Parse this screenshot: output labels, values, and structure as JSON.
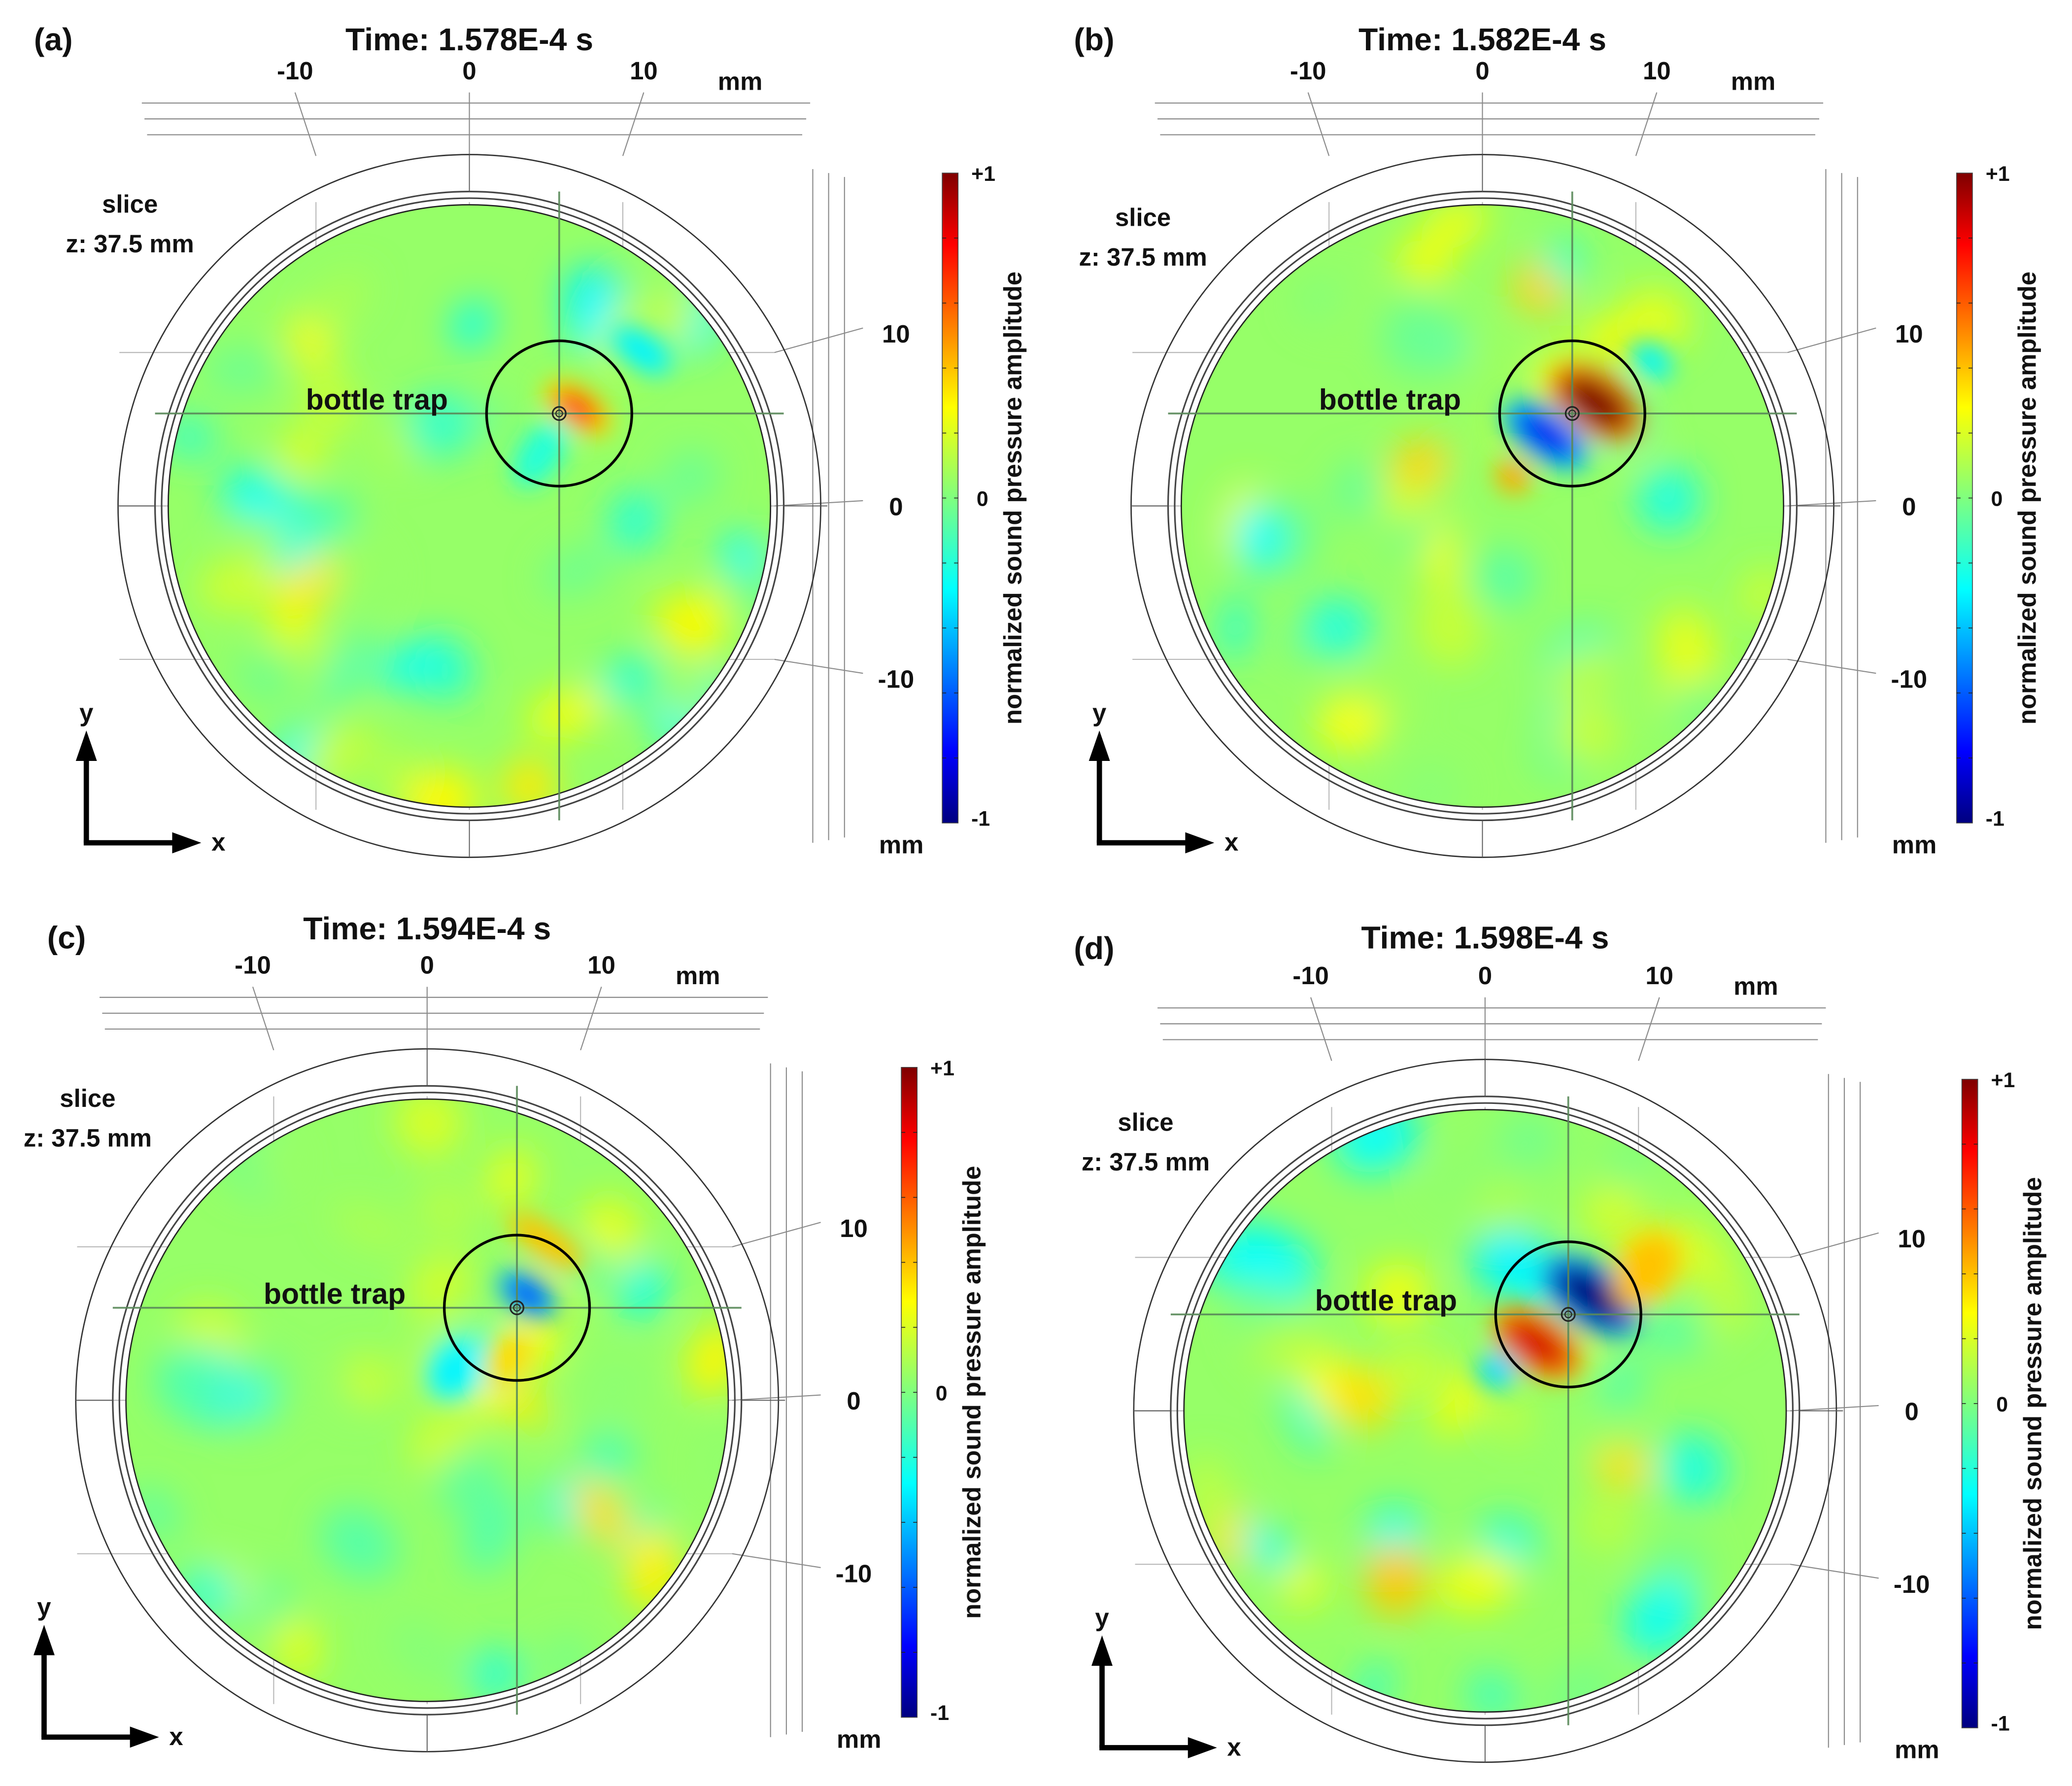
{
  "figure": {
    "unit_label": "mm",
    "slice_label": "slice",
    "slice_value": "z: 37.5 mm",
    "trap_label": "bottle trap",
    "axis_x_label": "x",
    "axis_y_label": "y",
    "colorbar": {
      "label": "normalized sound pressure amplitude",
      "max_label": "+1",
      "mid_label": "0",
      "min_label": "-1",
      "colormap": "jet",
      "stops": [
        "#00007f",
        "#0000ff",
        "#00ffff",
        "#7fff7f",
        "#ffff00",
        "#ff0000",
        "#7f0000"
      ]
    }
  },
  "panels": [
    {
      "label": "(a)",
      "title": "Time: 1.578E-4 s"
    },
    {
      "label": "(b)",
      "title": "Time: 1.582E-4 s"
    },
    {
      "label": "(c)",
      "title": "Time: 1.594E-4 s"
    },
    {
      "label": "(d)",
      "title": "Time: 1.598E-4 s"
    }
  ],
  "chart_data": [
    {
      "type": "heatmap",
      "title": "Time: 1.578E-4 s",
      "panel": "(a)",
      "xlabel": "x (mm)",
      "ylabel": "y (mm)",
      "x_ticks": [
        -10,
        0,
        10
      ],
      "y_ticks": [
        10,
        0,
        -10
      ],
      "xlim": [
        -17,
        17
      ],
      "ylim": [
        -17,
        17
      ],
      "colorbar_range": [
        -1,
        1
      ],
      "slice_z_mm": 37.5,
      "trap_center_mm": [
        5,
        5
      ],
      "trap_pattern": {
        "peak_value": 0.75,
        "trough_value": -0.3,
        "orientation": "positive lobe upper-right of trap center"
      },
      "background_range": [
        -0.3,
        0.35
      ]
    },
    {
      "type": "heatmap",
      "title": "Time: 1.582E-4 s",
      "panel": "(b)",
      "xlabel": "x (mm)",
      "ylabel": "y (mm)",
      "x_ticks": [
        -10,
        0,
        10
      ],
      "y_ticks": [
        10,
        0,
        -10
      ],
      "xlim": [
        -17,
        17
      ],
      "ylim": [
        -17,
        17
      ],
      "colorbar_range": [
        -1,
        1
      ],
      "slice_z_mm": 37.5,
      "trap_center_mm": [
        5,
        5
      ],
      "trap_pattern": {
        "peak_value": 1.0,
        "trough_value": -0.8,
        "orientation": "positive lobe upper-right, negative lobe lower-left"
      },
      "background_range": [
        -0.3,
        0.4
      ]
    },
    {
      "type": "heatmap",
      "title": "Time: 1.594E-4 s",
      "panel": "(c)",
      "xlabel": "x (mm)",
      "ylabel": "y (mm)",
      "x_ticks": [
        -10,
        0,
        10
      ],
      "y_ticks": [
        10,
        0,
        -10
      ],
      "xlim": [
        -17,
        17
      ],
      "ylim": [
        -17,
        17
      ],
      "colorbar_range": [
        -1,
        1
      ],
      "slice_z_mm": 37.5,
      "trap_center_mm": [
        5,
        5
      ],
      "trap_pattern": {
        "peak_value": 0.4,
        "trough_value": -0.65,
        "orientation": "negative lobe upper-right of trap center"
      },
      "background_range": [
        -0.3,
        0.35
      ]
    },
    {
      "type": "heatmap",
      "title": "Time: 1.598E-4 s",
      "panel": "(d)",
      "xlabel": "x (mm)",
      "ylabel": "y (mm)",
      "x_ticks": [
        -10,
        0,
        10
      ],
      "y_ticks": [
        10,
        0,
        -10
      ],
      "xlim": [
        -17,
        17
      ],
      "ylim": [
        -17,
        17
      ],
      "colorbar_range": [
        -1,
        1
      ],
      "slice_z_mm": 37.5,
      "trap_center_mm": [
        5,
        5
      ],
      "trap_pattern": {
        "peak_value": 0.85,
        "trough_value": -1.0,
        "orientation": "negative lobe upper-right, positive lobe lower-left"
      },
      "background_range": [
        -0.3,
        0.4
      ]
    }
  ]
}
